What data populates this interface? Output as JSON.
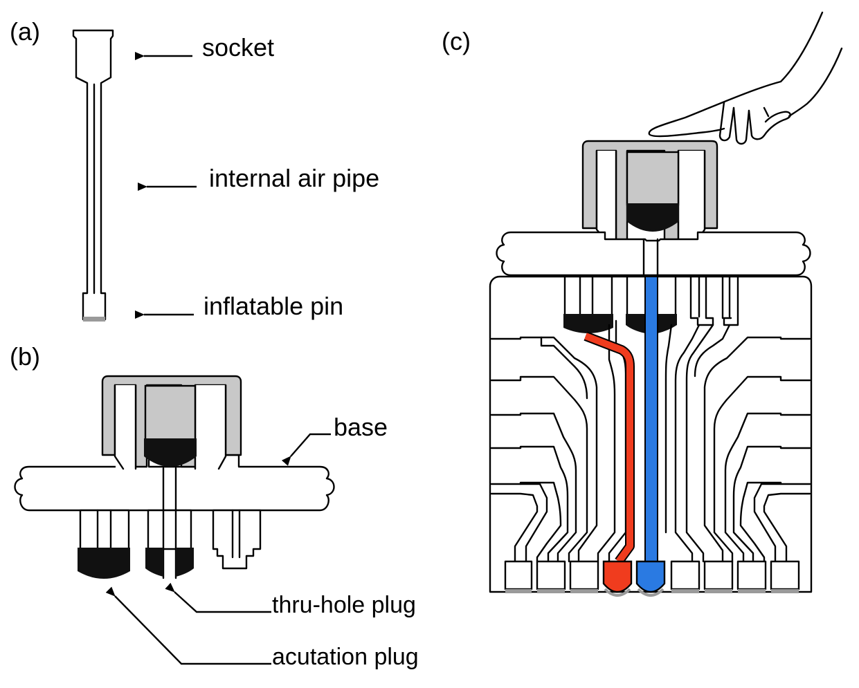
{
  "panels": {
    "a": {
      "label": "(a)",
      "callouts": {
        "socket": "socket",
        "internal_air_pipe": "internal air pipe",
        "inflatable_pin": "inflatable pin"
      }
    },
    "b": {
      "label": "(b)",
      "callouts": {
        "base": "base",
        "thru_hole_plug": "thru-hole plug",
        "actuation_plug": "acutation plug"
      }
    },
    "c": {
      "label": "(c)"
    }
  },
  "colors": {
    "cap_gray": "#c8c8c8",
    "plug_black": "#111111",
    "red_pipe": "#f03c1e",
    "blue_pipe": "#2a7ae2",
    "tip_gray": "#9a9a9a"
  },
  "icons": {
    "hand": "pointing-hand-icon"
  }
}
